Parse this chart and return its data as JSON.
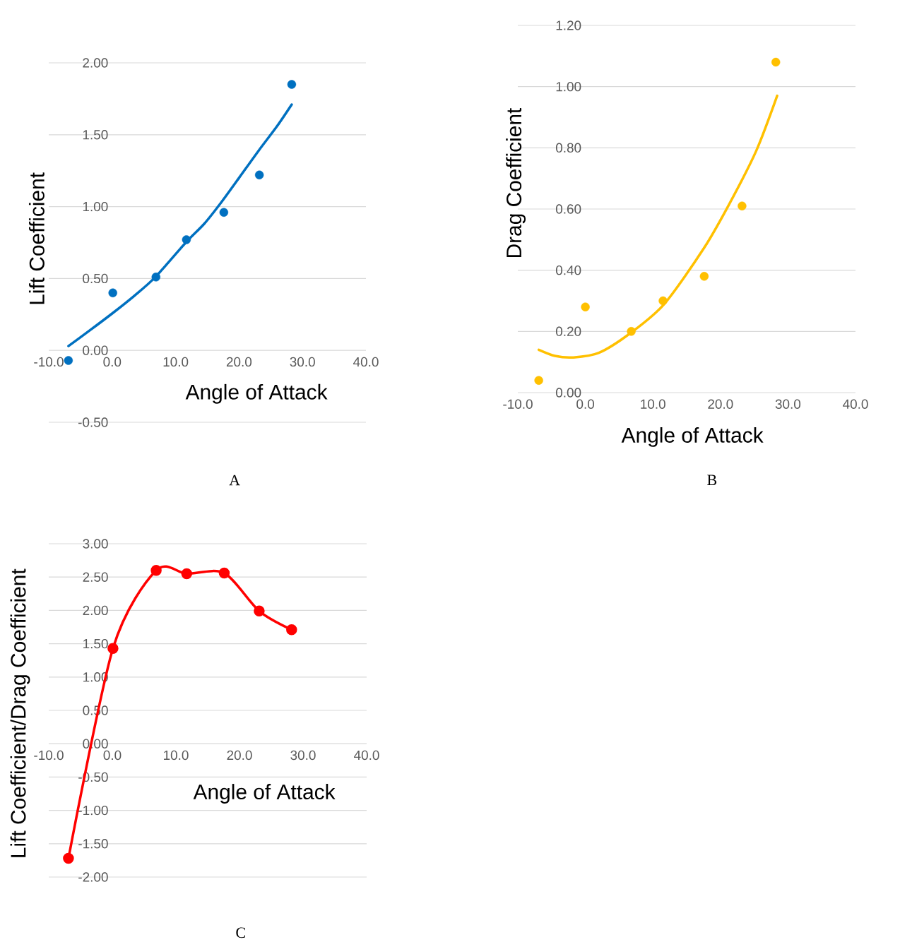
{
  "chart_data": [
    {
      "type": "scatter",
      "xlabel": "Angle of Attack",
      "ylabel": "Lift Coefficient",
      "annotations": [
        "A"
      ],
      "grid": "y",
      "marker": "circle",
      "xlim": [
        -10,
        40
      ],
      "xticks": [
        {
          "value": -10,
          "label": "-10.0"
        },
        {
          "value": 0,
          "label": "0.0"
        },
        {
          "value": 10,
          "label": "10.0"
        },
        {
          "value": 20,
          "label": "20.0"
        },
        {
          "value": 30,
          "label": "30.0"
        },
        {
          "value": 40,
          "label": "40.0"
        }
      ],
      "ylim": [
        -0.5,
        2.0
      ],
      "yticks": [
        {
          "value": -0.5,
          "label": "-0.50"
        },
        {
          "value": 0,
          "label": "0.00"
        },
        {
          "value": 0.5,
          "label": "0.50"
        },
        {
          "value": 1.0,
          "label": "1.00"
        },
        {
          "value": 1.5,
          "label": "1.50"
        },
        {
          "value": 2.0,
          "label": "2.00"
        }
      ],
      "series": [
        {
          "type": "scatter",
          "color": "#0070c0",
          "x": [
            -6.9,
            0.1,
            6.9,
            11.7,
            17.6,
            23.2,
            28.3
          ],
          "values": [
            -0.07,
            0.4,
            0.51,
            0.77,
            0.96,
            1.22,
            1.85
          ]
        },
        {
          "type": "line",
          "marker": "none",
          "color": "#0070c0",
          "x": [
            -6.9,
            -3.5,
            0.1,
            3.5,
            6.8,
            11.6,
            14.5,
            17.2,
            20,
            23.1,
            26,
            28.3
          ],
          "values": [
            0.03,
            0.14,
            0.26,
            0.38,
            0.51,
            0.75,
            0.88,
            1.03,
            1.2,
            1.39,
            1.56,
            1.71
          ]
        }
      ]
    },
    {
      "type": "scatter",
      "xlabel": "Angle of Attack",
      "ylabel": "Drag Coefficient",
      "annotations": [
        "B"
      ],
      "grid": "y",
      "marker": "circle",
      "xlim": [
        -10,
        40
      ],
      "xticks": [
        {
          "value": -10,
          "label": "-10.0"
        },
        {
          "value": 0,
          "label": "0.0"
        },
        {
          "value": 10,
          "label": "10.0"
        },
        {
          "value": 20,
          "label": "20.0"
        },
        {
          "value": 30,
          "label": "30.0"
        },
        {
          "value": 40,
          "label": "40.0"
        }
      ],
      "ylim": [
        0,
        1.2
      ],
      "yticks": [
        {
          "value": 0,
          "label": "0.00"
        },
        {
          "value": 0.2,
          "label": "0.20"
        },
        {
          "value": 0.4,
          "label": "0.40"
        },
        {
          "value": 0.6,
          "label": "0.60"
        },
        {
          "value": 0.8,
          "label": "0.80"
        },
        {
          "value": 1.0,
          "label": "1.00"
        },
        {
          "value": 1.2,
          "label": "1.20"
        }
      ],
      "series": [
        {
          "type": "scatter",
          "color": "#ffc000",
          "x": [
            -6.9,
            0.0,
            6.8,
            11.5,
            17.6,
            23.2,
            28.2
          ],
          "values": [
            0.04,
            0.28,
            0.2,
            0.3,
            0.38,
            0.61,
            1.08
          ]
        },
        {
          "type": "line",
          "marker": "none",
          "color": "#ffc000",
          "x": [
            -6.9,
            -4.5,
            -1.8,
            2,
            6.7,
            11.7,
            17.5,
            21.4,
            25.3,
            28.4
          ],
          "values": [
            0.14,
            0.12,
            0.115,
            0.13,
            0.195,
            0.29,
            0.47,
            0.62,
            0.79,
            0.97
          ]
        }
      ]
    },
    {
      "type": "line",
      "xlabel": "Angle of Attack",
      "ylabel": "Lift Coefficient/Drag Coefficient",
      "annotations": [
        "C"
      ],
      "grid": "y",
      "marker": "circle",
      "xlim": [
        -10,
        40
      ],
      "xticks": [
        {
          "value": -10,
          "label": "-10.0"
        },
        {
          "value": 0,
          "label": "0.0"
        },
        {
          "value": 10,
          "label": "10.0"
        },
        {
          "value": 20,
          "label": "20.0"
        },
        {
          "value": 30,
          "label": "30.0"
        },
        {
          "value": 40,
          "label": "40.0"
        }
      ],
      "ylim": [
        -2.0,
        3.0
      ],
      "yticks": [
        {
          "value": -2,
          "label": "-2.00"
        },
        {
          "value": -1.5,
          "label": "-1.50"
        },
        {
          "value": -1,
          "label": "-1.00"
        },
        {
          "value": -0.5,
          "label": "-0.50"
        },
        {
          "value": 0,
          "label": "0.00"
        },
        {
          "value": 0.5,
          "label": "0.50"
        },
        {
          "value": 1,
          "label": "1.00"
        },
        {
          "value": 1.5,
          "label": "1.50"
        },
        {
          "value": 2,
          "label": "2.00"
        },
        {
          "value": 2.5,
          "label": "2.50"
        },
        {
          "value": 3,
          "label": "3.00"
        }
      ],
      "series": [
        {
          "color": "#ff0000",
          "x": [
            -6.9,
            0.1,
            6.9,
            11.7,
            17.6,
            23.1,
            28.2
          ],
          "values": [
            -1.72,
            1.43,
            2.6,
            2.55,
            2.56,
            1.99,
            1.71
          ]
        }
      ]
    }
  ]
}
